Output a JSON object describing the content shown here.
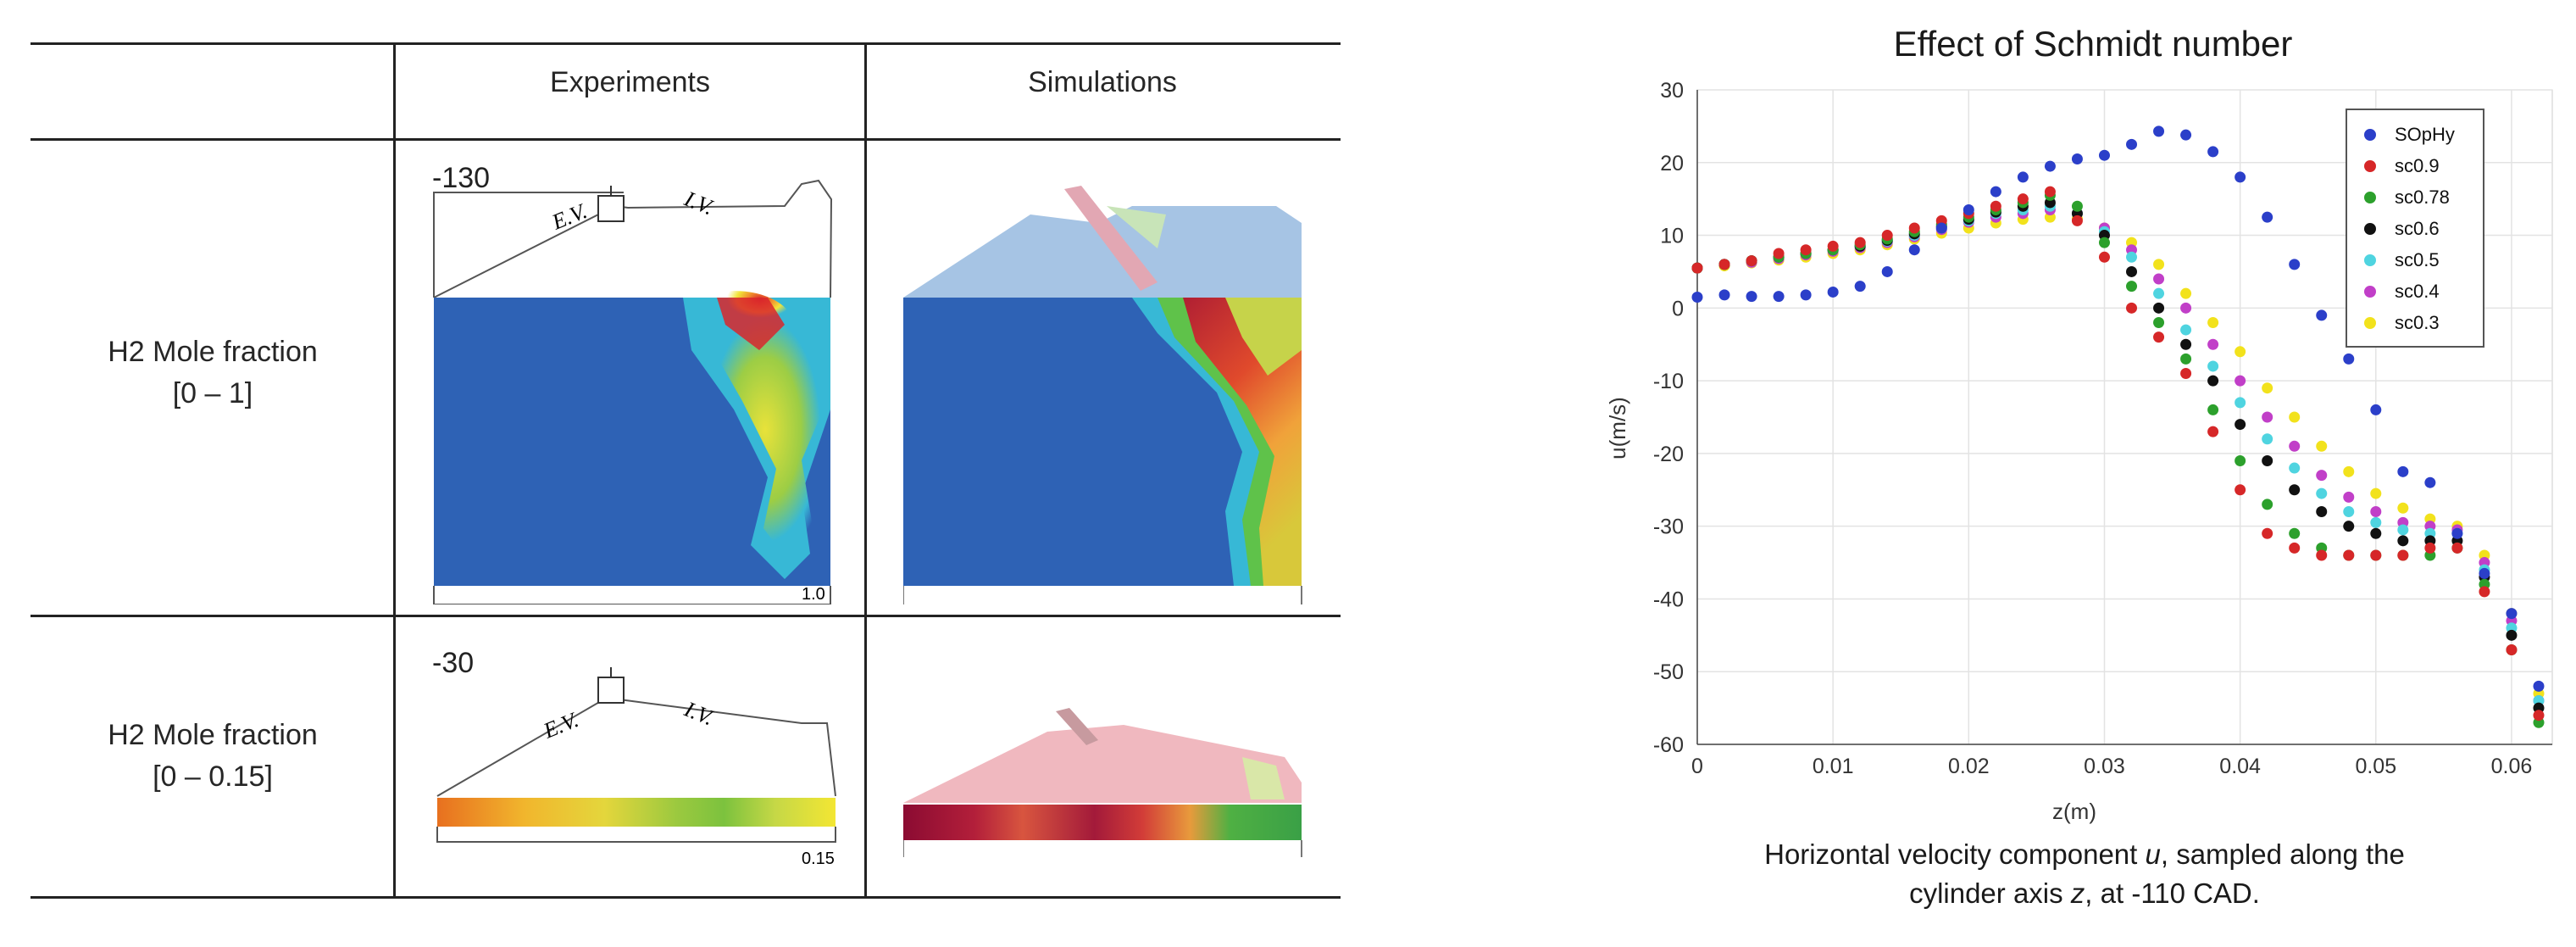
{
  "table": {
    "headers": [
      "Experiments",
      "Simulations"
    ],
    "rows": [
      {
        "label_line1": "H2 Mole fraction",
        "label_line2": "[0 – 1]",
        "exp_cad": "-130",
        "scale_max": "1.0"
      },
      {
        "label_line1": "H2 Mole fraction",
        "label_line2": "[0 – 0.15]",
        "exp_cad": "-30",
        "scale_max": "0.15"
      }
    ],
    "valve_labels": {
      "exhaust": "E.V.",
      "intake": "I.V."
    }
  },
  "caption": {
    "line1_pre": "Horizontal velocity component ",
    "line1_var": "u",
    "line1_post": ", sampled along the",
    "line2_pre": "cylinder axis ",
    "line2_var": "z",
    "line2_post": ", at -110 CAD."
  },
  "chart_data": {
    "type": "scatter",
    "title": "Effect of Schmidt number",
    "xlabel": "z(m)",
    "ylabel": "u(m/s)",
    "xlim": [
      0,
      0.063
    ],
    "ylim": [
      -60,
      30
    ],
    "xticks": [
      "0",
      "0.01",
      "0.02",
      "0.03",
      "0.04",
      "0.05",
      "0.06"
    ],
    "yticks": [
      "-60",
      "-50",
      "-40",
      "-30",
      "-20",
      "-10",
      "0",
      "10",
      "20",
      "30"
    ],
    "grid": true,
    "legend_position": "top-right",
    "series": [
      {
        "name": "SOpHy",
        "color": "#2b3fc9",
        "x": [
          0,
          0.002,
          0.004,
          0.006,
          0.008,
          0.01,
          0.012,
          0.014,
          0.016,
          0.018,
          0.02,
          0.022,
          0.024,
          0.026,
          0.028,
          0.03,
          0.032,
          0.034,
          0.036,
          0.038,
          0.04,
          0.042,
          0.044,
          0.046,
          0.048,
          0.05,
          0.052,
          0.054,
          0.056,
          0.058,
          0.06,
          0.062
        ],
        "y": [
          1.5,
          1.8,
          1.6,
          1.6,
          1.8,
          2.2,
          3,
          5,
          8,
          11,
          13.5,
          16,
          18,
          19.5,
          20.5,
          21,
          22.5,
          24.3,
          23.8,
          21.5,
          18,
          12.5,
          6,
          -1,
          -7,
          -14,
          -22.5,
          -24,
          -31,
          -36.5,
          -42,
          -52
        ]
      },
      {
        "name": "sc0.9",
        "color": "#d62728",
        "x": [
          0,
          0.002,
          0.004,
          0.006,
          0.008,
          0.01,
          0.012,
          0.014,
          0.016,
          0.018,
          0.02,
          0.022,
          0.024,
          0.026,
          0.028,
          0.03,
          0.032,
          0.034,
          0.036,
          0.038,
          0.04,
          0.042,
          0.044,
          0.046,
          0.048,
          0.05,
          0.052,
          0.054,
          0.056,
          0.058,
          0.06,
          0.062
        ],
        "y": [
          5.5,
          6,
          6.5,
          7.5,
          8,
          8.5,
          9,
          10,
          11,
          12,
          13,
          14,
          15,
          16,
          12,
          7,
          0,
          -4,
          -9,
          -17,
          -25,
          -31,
          -33,
          -34,
          -34,
          -34,
          -34,
          -33,
          -33,
          -39,
          -47,
          -56
        ]
      },
      {
        "name": "sc0.78",
        "color": "#2ca02c",
        "x": [
          0,
          0.002,
          0.004,
          0.006,
          0.008,
          0.01,
          0.012,
          0.014,
          0.016,
          0.018,
          0.02,
          0.022,
          0.024,
          0.026,
          0.028,
          0.03,
          0.032,
          0.034,
          0.036,
          0.038,
          0.04,
          0.042,
          0.044,
          0.046,
          0.048,
          0.05,
          0.052,
          0.054,
          0.056,
          0.058,
          0.06,
          0.062
        ],
        "y": [
          5.5,
          6,
          6.5,
          7,
          7.5,
          8,
          8.7,
          9.5,
          10.5,
          11.5,
          12.5,
          13.5,
          14.5,
          15.5,
          14,
          9,
          3,
          -2,
          -7,
          -14,
          -21,
          -27,
          -31,
          -33,
          -34,
          -34,
          -34,
          -34,
          -33,
          -38,
          -47,
          -57
        ]
      },
      {
        "name": "sc0.6",
        "color": "#111111",
        "x": [
          0,
          0.002,
          0.004,
          0.006,
          0.008,
          0.01,
          0.012,
          0.014,
          0.016,
          0.018,
          0.02,
          0.022,
          0.024,
          0.026,
          0.028,
          0.03,
          0.032,
          0.034,
          0.036,
          0.038,
          0.04,
          0.042,
          0.044,
          0.046,
          0.048,
          0.05,
          0.052,
          0.054,
          0.056,
          0.058,
          0.06,
          0.062
        ],
        "y": [
          5.5,
          6,
          6.5,
          7,
          7.5,
          8,
          8.5,
          9.3,
          10.2,
          11.2,
          12.2,
          13.2,
          14,
          14.5,
          13,
          10,
          5,
          0,
          -5,
          -10,
          -16,
          -21,
          -25,
          -28,
          -30,
          -31,
          -32,
          -32,
          -32,
          -37,
          -45,
          -55
        ]
      },
      {
        "name": "sc0.5",
        "color": "#4fd4e0",
        "x": [
          0,
          0.002,
          0.004,
          0.006,
          0.008,
          0.01,
          0.012,
          0.014,
          0.016,
          0.018,
          0.02,
          0.022,
          0.024,
          0.026,
          0.028,
          0.03,
          0.032,
          0.034,
          0.036,
          0.038,
          0.04,
          0.042,
          0.044,
          0.046,
          0.048,
          0.05,
          0.052,
          0.054,
          0.056,
          0.058,
          0.06,
          0.062
        ],
        "y": [
          5.5,
          6,
          6.5,
          7,
          7.5,
          8,
          8.5,
          9.2,
          10,
          11,
          12,
          13,
          13.5,
          14,
          13,
          10.5,
          7,
          2,
          -3,
          -8,
          -13,
          -18,
          -22,
          -25.5,
          -28,
          -29.5,
          -30.5,
          -31,
          -31,
          -36,
          -44,
          -54
        ]
      },
      {
        "name": "sc0.4",
        "color": "#c13fc8",
        "x": [
          0,
          0.002,
          0.004,
          0.006,
          0.008,
          0.01,
          0.012,
          0.014,
          0.016,
          0.018,
          0.02,
          0.022,
          0.024,
          0.026,
          0.028,
          0.03,
          0.032,
          0.034,
          0.036,
          0.038,
          0.04,
          0.042,
          0.044,
          0.046,
          0.048,
          0.05,
          0.052,
          0.054,
          0.056,
          0.058,
          0.06,
          0.062
        ],
        "y": [
          5.5,
          6,
          6.3,
          6.8,
          7.3,
          7.8,
          8.3,
          9,
          9.8,
          10.8,
          11.8,
          12.5,
          13,
          13.5,
          13,
          11,
          8,
          4,
          0,
          -5,
          -10,
          -15,
          -19,
          -23,
          -26,
          -28,
          -29.5,
          -30,
          -30.5,
          -35,
          -43,
          -54
        ]
      },
      {
        "name": "sc0.3",
        "color": "#f2e21c",
        "x": [
          0,
          0.002,
          0.004,
          0.006,
          0.008,
          0.01,
          0.012,
          0.014,
          0.016,
          0.018,
          0.02,
          0.022,
          0.024,
          0.026,
          0.028,
          0.03,
          0.032,
          0.034,
          0.036,
          0.038,
          0.04,
          0.042,
          0.044,
          0.046,
          0.048,
          0.05,
          0.052,
          0.054,
          0.056,
          0.058,
          0.06,
          0.062
        ],
        "y": [
          5.5,
          5.8,
          6.2,
          6.6,
          7,
          7.5,
          8,
          8.7,
          9.5,
          10.3,
          11,
          11.7,
          12.2,
          12.5,
          12.3,
          11,
          9,
          6,
          2,
          -2,
          -6,
          -11,
          -15,
          -19,
          -22.5,
          -25.5,
          -27.5,
          -29,
          -30,
          -34,
          -42,
          -53
        ]
      }
    ]
  }
}
